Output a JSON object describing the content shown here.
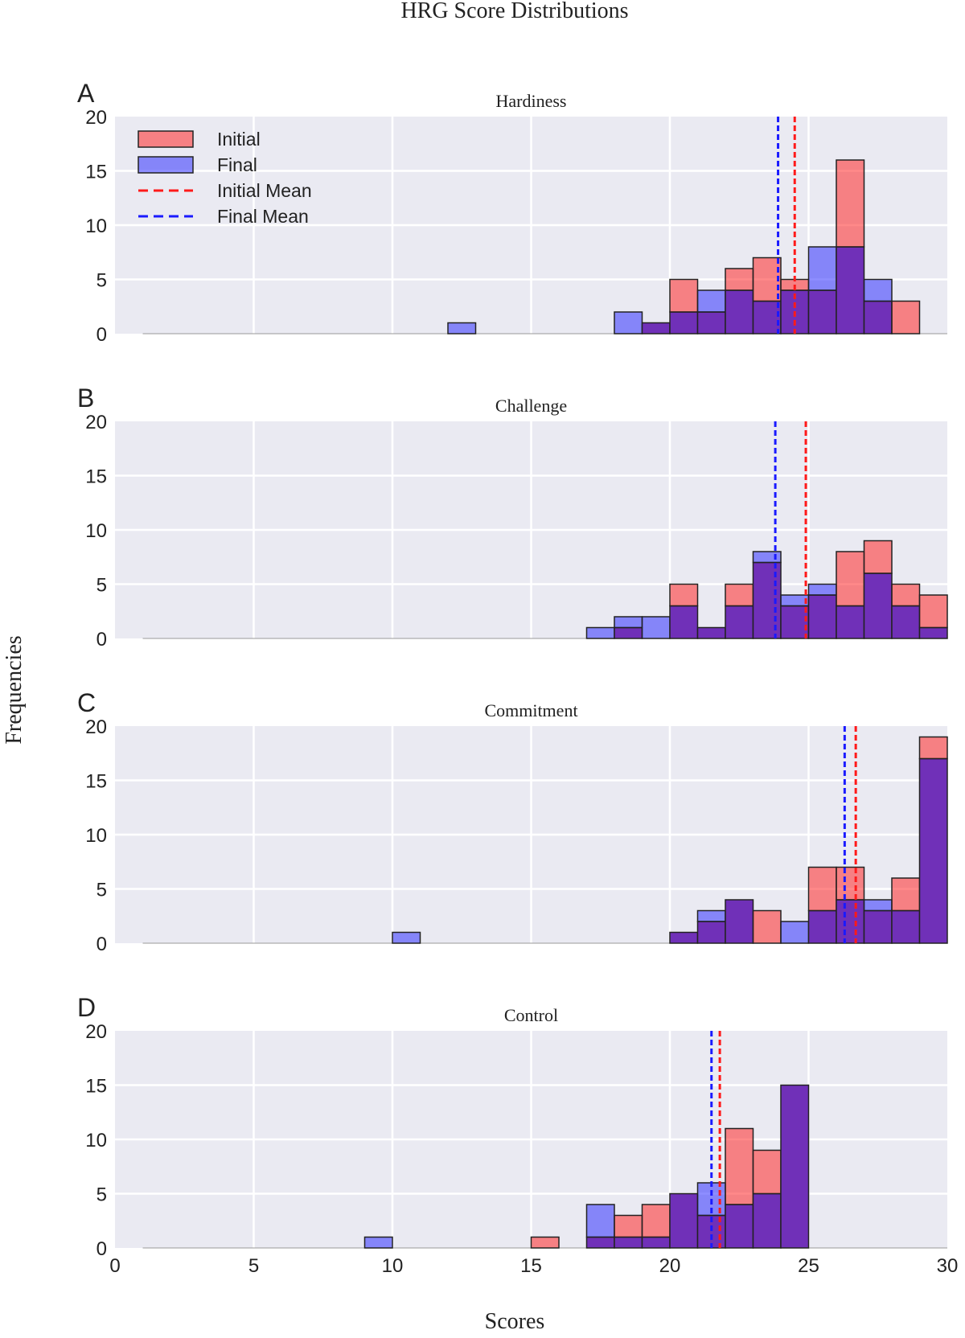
{
  "figure": {
    "title": "HRG Score Distributions",
    "xlabel": "Scores",
    "ylabel": "Frequencies"
  },
  "legend": {
    "location": "top-left",
    "entries": [
      {
        "label": "Initial",
        "kind": "patch",
        "color": "#ff5050"
      },
      {
        "label": "Final",
        "kind": "patch",
        "color": "#6060ff"
      },
      {
        "label": "Initial Mean",
        "kind": "dashed-line",
        "color": "#ff1a1a"
      },
      {
        "label": "Final Mean",
        "kind": "dashed-line",
        "color": "#1a1aff"
      }
    ]
  },
  "colors": {
    "initial": "#ff5050",
    "final": "#6060ff",
    "overlap": "#7030b8",
    "initial_mean": "#ff1a1a",
    "final_mean": "#1a1aff",
    "plot_background": "#eaeaf2"
  },
  "chart_data": [
    {
      "type": "bar",
      "panel_letter": "A",
      "title": "Hardiness",
      "xlim": [
        0,
        30
      ],
      "ylim": [
        0,
        20
      ],
      "xticks": [
        0,
        5,
        10,
        15,
        20,
        25,
        30
      ],
      "yticks": [
        0,
        5,
        10,
        15,
        20
      ],
      "show_xtick_labels": false,
      "bin_edges": [
        1,
        2,
        3,
        4,
        5,
        6,
        7,
        8,
        9,
        10,
        11,
        12,
        13,
        14,
        15,
        16,
        17,
        18,
        19,
        20,
        21,
        22,
        23,
        24,
        25,
        26,
        27,
        28,
        29
      ],
      "series": [
        {
          "name": "Initial",
          "values": [
            0,
            0,
            0,
            0,
            0,
            0,
            0,
            0,
            0,
            0,
            0,
            0,
            0,
            0,
            0,
            0,
            0,
            0,
            1,
            5,
            2,
            6,
            7,
            5,
            4,
            16,
            3,
            3
          ]
        },
        {
          "name": "Final",
          "values": [
            0,
            0,
            0,
            0,
            0,
            0,
            0,
            0,
            0,
            0,
            0,
            1,
            0,
            0,
            0,
            0,
            0,
            2,
            1,
            2,
            4,
            4,
            3,
            4,
            8,
            8,
            5,
            0
          ]
        }
      ],
      "means": {
        "initial": 24.5,
        "final": 23.9
      }
    },
    {
      "type": "bar",
      "panel_letter": "B",
      "title": "Challenge",
      "xlim": [
        0,
        30
      ],
      "ylim": [
        0,
        20
      ],
      "xticks": [
        0,
        5,
        10,
        15,
        20,
        25,
        30
      ],
      "yticks": [
        0,
        5,
        10,
        15,
        20
      ],
      "show_xtick_labels": false,
      "bin_edges": [
        1,
        2,
        3,
        4,
        5,
        6,
        7,
        8,
        9,
        10,
        11,
        12,
        13,
        14,
        15,
        16,
        17,
        18,
        19,
        20,
        21,
        22,
        23,
        24,
        25,
        26,
        27,
        28,
        29,
        30
      ],
      "series": [
        {
          "name": "Initial",
          "values": [
            0,
            0,
            0,
            0,
            0,
            0,
            0,
            0,
            0,
            0,
            0,
            0,
            0,
            0,
            0,
            0,
            0,
            1,
            0,
            5,
            1,
            5,
            7,
            3,
            4,
            8,
            9,
            5,
            4
          ]
        },
        {
          "name": "Final",
          "values": [
            0,
            0,
            0,
            0,
            0,
            0,
            0,
            0,
            0,
            0,
            0,
            0,
            0,
            0,
            0,
            0,
            1,
            2,
            2,
            3,
            1,
            3,
            8,
            4,
            5,
            3,
            6,
            3,
            1
          ]
        }
      ],
      "means": {
        "initial": 24.9,
        "final": 23.8
      }
    },
    {
      "type": "bar",
      "panel_letter": "C",
      "title": "Commitment",
      "xlim": [
        0,
        30
      ],
      "ylim": [
        0,
        20
      ],
      "xticks": [
        0,
        5,
        10,
        15,
        20,
        25,
        30
      ],
      "yticks": [
        0,
        5,
        10,
        15,
        20
      ],
      "show_xtick_labels": false,
      "bin_edges": [
        1,
        2,
        3,
        4,
        5,
        6,
        7,
        8,
        9,
        10,
        11,
        12,
        13,
        14,
        15,
        16,
        17,
        18,
        19,
        20,
        21,
        22,
        23,
        24,
        25,
        26,
        27,
        28,
        29,
        30
      ],
      "series": [
        {
          "name": "Initial",
          "values": [
            0,
            0,
            0,
            0,
            0,
            0,
            0,
            0,
            0,
            0,
            0,
            0,
            0,
            0,
            0,
            0,
            0,
            0,
            0,
            1,
            2,
            4,
            3,
            0,
            7,
            7,
            3,
            6,
            19
          ]
        },
        {
          "name": "Final",
          "values": [
            0,
            0,
            0,
            0,
            0,
            0,
            0,
            0,
            0,
            1,
            0,
            0,
            0,
            0,
            0,
            0,
            0,
            0,
            0,
            1,
            3,
            4,
            0,
            2,
            3,
            4,
            4,
            3,
            17
          ]
        }
      ],
      "means": {
        "initial": 26.7,
        "final": 26.3
      }
    },
    {
      "type": "bar",
      "panel_letter": "D",
      "title": "Control",
      "xlim": [
        0,
        30
      ],
      "ylim": [
        0,
        20
      ],
      "xticks": [
        0,
        5,
        10,
        15,
        20,
        25,
        30
      ],
      "yticks": [
        0,
        5,
        10,
        15,
        20
      ],
      "show_xtick_labels": true,
      "bin_edges": [
        1,
        2,
        3,
        4,
        5,
        6,
        7,
        8,
        9,
        10,
        11,
        12,
        13,
        14,
        15,
        16,
        17,
        18,
        19,
        20,
        21,
        22,
        23,
        24,
        25
      ],
      "series": [
        {
          "name": "Initial",
          "values": [
            0,
            0,
            0,
            0,
            0,
            0,
            0,
            0,
            0,
            0,
            0,
            0,
            0,
            0,
            1,
            0,
            1,
            3,
            4,
            5,
            3,
            11,
            9,
            15
          ]
        },
        {
          "name": "Final",
          "values": [
            0,
            0,
            0,
            0,
            0,
            0,
            0,
            0,
            1,
            0,
            0,
            0,
            0,
            0,
            0,
            0,
            4,
            1,
            1,
            5,
            6,
            4,
            5,
            15
          ]
        }
      ],
      "means": {
        "initial": 21.8,
        "final": 21.5
      }
    }
  ]
}
